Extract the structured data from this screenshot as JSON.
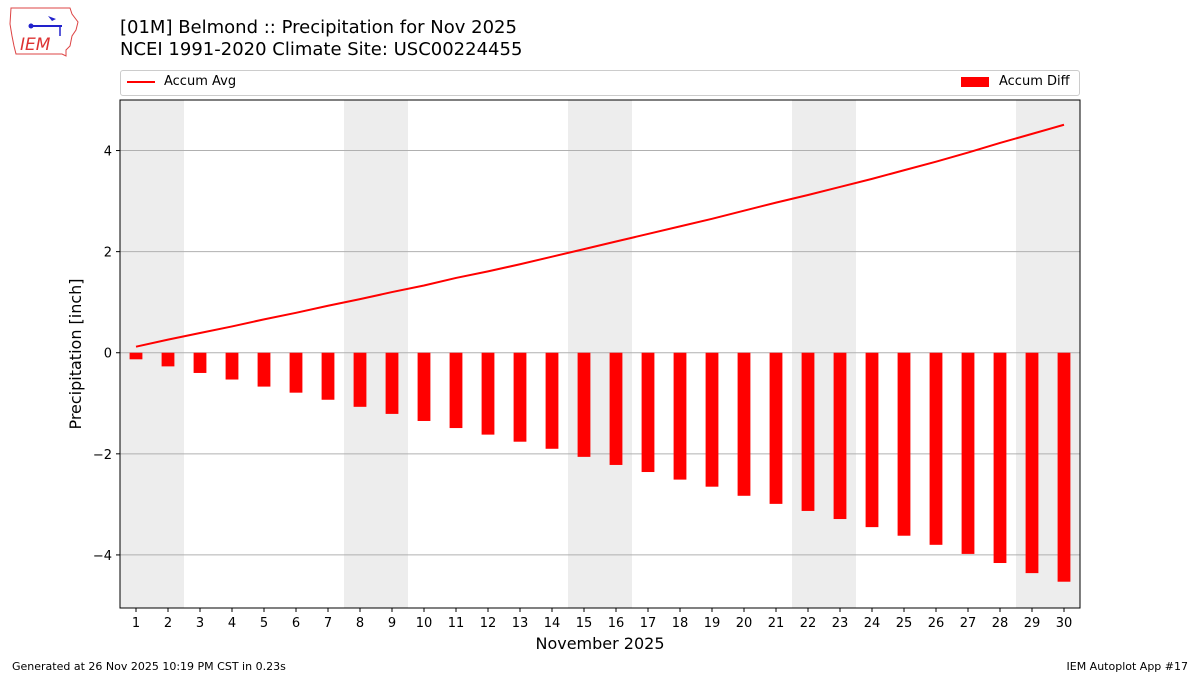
{
  "title": {
    "line1": "[01M] Belmond :: Precipitation for Nov 2025",
    "line2": "NCEI 1991-2020 Climate Site: USC00224455"
  },
  "logo": {
    "text": "IEM"
  },
  "footer": {
    "left": "Generated at 26 Nov 2025 10:19 PM CST in 0.23s",
    "right": "IEM Autoplot App #17"
  },
  "chart_data": {
    "type": "bar",
    "xlabel": "November 2025",
    "ylabel": "Precipitation [inch]",
    "ylim": [
      -5.05,
      5.0
    ],
    "yticks": [
      -4,
      -2,
      0,
      2,
      4
    ],
    "xlim": [
      0.5,
      30.5
    ],
    "grid": "y",
    "legend_placement": "top, outside",
    "shaded_weekend_days": [
      1,
      2,
      8,
      9,
      15,
      16,
      22,
      23,
      29,
      30
    ],
    "shade_color": "#ededed",
    "categories": [
      1,
      2,
      3,
      4,
      5,
      6,
      7,
      8,
      9,
      10,
      11,
      12,
      13,
      14,
      15,
      16,
      17,
      18,
      19,
      20,
      21,
      22,
      23,
      24,
      25,
      26,
      27,
      28,
      29,
      30
    ],
    "series": [
      {
        "name": "Accum Avg",
        "kind": "line",
        "color": "#ff0000",
        "values": [
          0.12,
          0.26,
          0.39,
          0.52,
          0.66,
          0.79,
          0.93,
          1.06,
          1.2,
          1.33,
          1.48,
          1.61,
          1.75,
          1.9,
          2.05,
          2.2,
          2.35,
          2.5,
          2.65,
          2.81,
          2.97,
          3.12,
          3.28,
          3.44,
          3.61,
          3.78,
          3.96,
          4.15,
          4.33,
          4.51
        ]
      },
      {
        "name": "Accum Diff",
        "kind": "bar",
        "color": "#ff0000",
        "values": [
          -0.13,
          -0.27,
          -0.4,
          -0.53,
          -0.67,
          -0.79,
          -0.93,
          -1.07,
          -1.21,
          -1.35,
          -1.49,
          -1.62,
          -1.76,
          -1.9,
          -2.06,
          -2.22,
          -2.36,
          -2.51,
          -2.65,
          -2.83,
          -2.99,
          -3.13,
          -3.29,
          -3.45,
          -3.62,
          -3.8,
          -3.98,
          -4.16,
          -4.36,
          -4.53
        ]
      }
    ]
  }
}
